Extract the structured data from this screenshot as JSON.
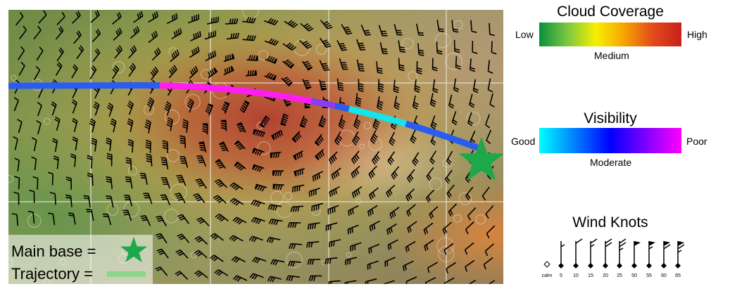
{
  "map": {
    "legend": {
      "main_base_label": "Main base =",
      "trajectory_label": "Trajectory ="
    },
    "colors": {
      "base_star": "#1ea84a",
      "trajectory_legend": "#8fd48a"
    },
    "trajectory_segments": [
      {
        "color": "#2a5cf0",
        "visibility": "moderate"
      },
      {
        "color": "#ff1df0",
        "visibility": "poor"
      },
      {
        "color": "#8a3cf0",
        "visibility": "moderate-poor"
      },
      {
        "color": "#2a5cf0",
        "visibility": "moderate"
      },
      {
        "color": "#12e6ec",
        "visibility": "good"
      },
      {
        "color": "#2a5cf0",
        "visibility": "moderate"
      }
    ]
  },
  "cloud": {
    "title": "Cloud Coverage",
    "low": "Low",
    "medium": "Medium",
    "high": "High",
    "colors": [
      "#0a8f3c",
      "#7cc840",
      "#f7ef00",
      "#f5a300",
      "#e24a1c",
      "#c8201a"
    ]
  },
  "visibility": {
    "title": "Visibility",
    "good": "Good",
    "moderate": "Moderate",
    "poor": "Poor",
    "colors": [
      "#00ffff",
      "#0000ff",
      "#ff00ff"
    ]
  },
  "wind": {
    "title": "Wind Knots",
    "scale": [
      "calm",
      "5",
      "10",
      "15",
      "20",
      "25",
      "50",
      "55",
      "60",
      "65"
    ]
  }
}
